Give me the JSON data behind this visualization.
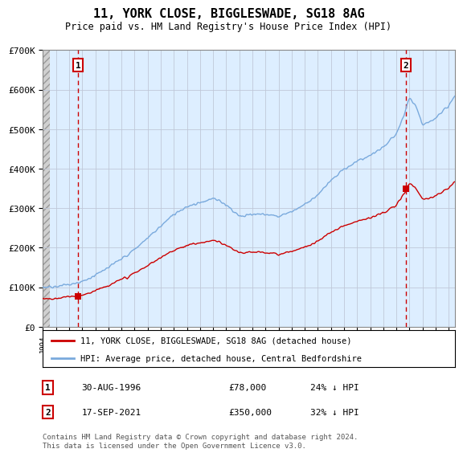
{
  "title": "11, YORK CLOSE, BIGGLESWADE, SG18 8AG",
  "subtitle": "Price paid vs. HM Land Registry's House Price Index (HPI)",
  "ylim": [
    0,
    700000
  ],
  "yticks": [
    0,
    100000,
    200000,
    300000,
    400000,
    500000,
    600000,
    700000
  ],
  "ytick_labels": [
    "£0",
    "£100K",
    "£200K",
    "£300K",
    "£400K",
    "£500K",
    "£600K",
    "£700K"
  ],
  "hpi_color": "#7aaadd",
  "price_color": "#cc0000",
  "bg_color": "#ddeeff",
  "grid_color": "#c0c8d8",
  "purchase1_date": 1996.67,
  "purchase1_price": 78000,
  "purchase1_label": "1",
  "purchase2_date": 2021.72,
  "purchase2_price": 350000,
  "purchase2_label": "2",
  "legend_line1": "11, YORK CLOSE, BIGGLESWADE, SG18 8AG (detached house)",
  "legend_line2": "HPI: Average price, detached house, Central Bedfordshire",
  "note1_label": "1",
  "note1_date": "30-AUG-1996",
  "note1_price": "£78,000",
  "note1_hpi": "24% ↓ HPI",
  "note2_label": "2",
  "note2_date": "17-SEP-2021",
  "note2_price": "£350,000",
  "note2_hpi": "32% ↓ HPI",
  "footer": "Contains HM Land Registry data © Crown copyright and database right 2024.\nThis data is licensed under the Open Government Licence v3.0.",
  "xmin": 1994,
  "xmax": 2025.5
}
